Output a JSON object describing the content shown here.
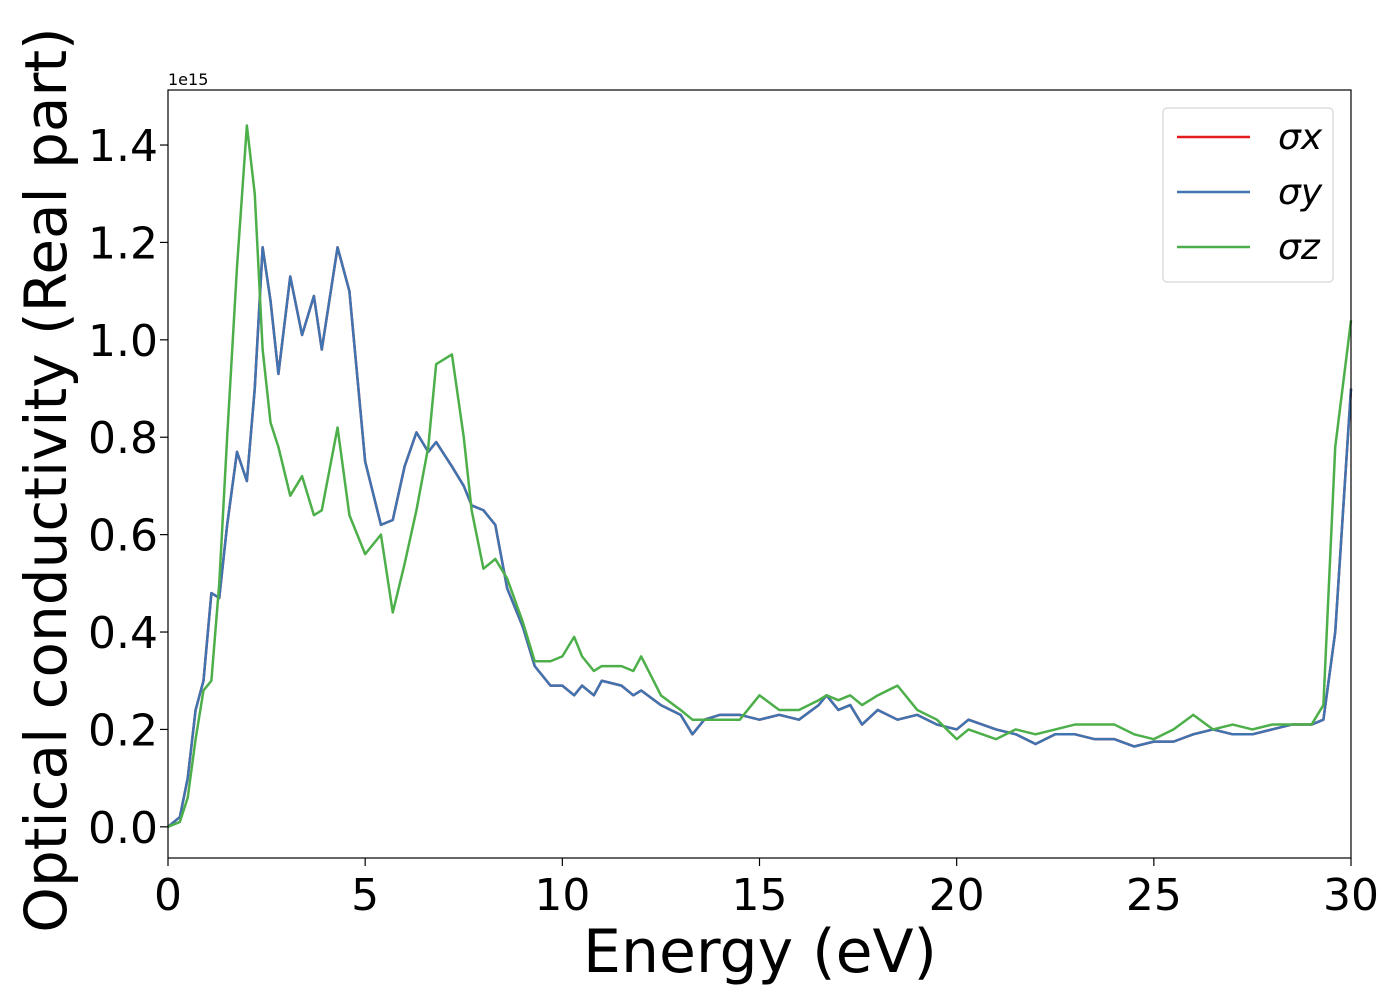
{
  "chart_data": {
    "type": "line",
    "x_label": "Energy (eV)",
    "y_label": "Optical conductivity (Real part)",
    "y_offset_label": "1e15",
    "xlim": [
      0,
      30
    ],
    "ylim": [
      -0.064,
      1.513
    ],
    "xticks": [
      0,
      5,
      10,
      15,
      20,
      25,
      30
    ],
    "yticks": [
      {
        "value": 0,
        "label": "0.0"
      },
      0.2,
      0.4,
      0.6,
      0.8,
      {
        "value": 1,
        "label": "1.0"
      },
      1.2,
      1.4
    ],
    "legend": "upper right",
    "x": [
      0,
      0.3,
      0.5,
      0.7,
      0.9,
      1.1,
      1.3,
      1.5,
      1.75,
      2.0,
      2.2,
      2.4,
      2.6,
      2.8,
      3.1,
      3.4,
      3.7,
      3.9,
      4.3,
      4.6,
      5.0,
      5.4,
      5.7,
      6.0,
      6.3,
      6.6,
      6.8,
      7.2,
      7.5,
      7.7,
      8.0,
      8.3,
      8.6,
      9.0,
      9.3,
      9.7,
      10.0,
      10.3,
      10.5,
      10.8,
      11.0,
      11.5,
      11.8,
      12.0,
      12.5,
      13.0,
      13.3,
      13.6,
      14.0,
      14.5,
      15.0,
      15.5,
      16.0,
      16.5,
      16.7,
      17.0,
      17.3,
      17.6,
      18.0,
      18.5,
      19.0,
      19.5,
      20.0,
      20.3,
      21,
      21.5,
      22,
      22.5,
      23,
      23.5,
      24,
      24.5,
      25,
      25.5,
      26,
      26.5,
      27,
      27.5,
      28,
      28.5,
      29,
      29.3,
      29.6,
      30
    ],
    "series": [
      {
        "name": "σx",
        "color": "#e41a1c",
        "values": [
          0,
          0.02,
          0.1,
          0.24,
          0.3,
          0.48,
          0.47,
          0.62,
          0.77,
          0.71,
          0.9,
          1.19,
          1.08,
          0.93,
          1.13,
          1.01,
          1.09,
          0.98,
          1.19,
          1.1,
          0.75,
          0.62,
          0.63,
          0.74,
          0.81,
          0.77,
          0.79,
          0.74,
          0.7,
          0.66,
          0.65,
          0.62,
          0.49,
          0.41,
          0.33,
          0.29,
          0.29,
          0.27,
          0.29,
          0.27,
          0.3,
          0.29,
          0.27,
          0.28,
          0.25,
          0.23,
          0.19,
          0.22,
          0.23,
          0.23,
          0.22,
          0.23,
          0.22,
          0.25,
          0.27,
          0.24,
          0.25,
          0.21,
          0.24,
          0.22,
          0.23,
          0.21,
          0.2,
          0.22,
          0.2,
          0.19,
          0.17,
          0.19,
          0.19,
          0.18,
          0.18,
          0.165,
          0.175,
          0.175,
          0.19,
          0.2,
          0.19,
          0.19,
          0.2,
          0.21,
          0.21,
          0.22,
          0.4,
          0.9
        ]
      },
      {
        "name": "σy",
        "color": "#3f74b0",
        "values": [
          0,
          0.02,
          0.1,
          0.24,
          0.3,
          0.48,
          0.47,
          0.62,
          0.77,
          0.71,
          0.9,
          1.19,
          1.08,
          0.93,
          1.13,
          1.01,
          1.09,
          0.98,
          1.19,
          1.1,
          0.75,
          0.62,
          0.63,
          0.74,
          0.81,
          0.77,
          0.79,
          0.74,
          0.7,
          0.66,
          0.65,
          0.62,
          0.49,
          0.41,
          0.33,
          0.29,
          0.29,
          0.27,
          0.29,
          0.27,
          0.3,
          0.29,
          0.27,
          0.28,
          0.25,
          0.23,
          0.19,
          0.22,
          0.23,
          0.23,
          0.22,
          0.23,
          0.22,
          0.25,
          0.27,
          0.24,
          0.25,
          0.21,
          0.24,
          0.22,
          0.23,
          0.21,
          0.2,
          0.22,
          0.2,
          0.19,
          0.17,
          0.19,
          0.19,
          0.18,
          0.18,
          0.165,
          0.175,
          0.175,
          0.19,
          0.2,
          0.19,
          0.19,
          0.2,
          0.21,
          0.21,
          0.22,
          0.4,
          0.9
        ]
      },
      {
        "name": "σz",
        "color": "#4daf4a",
        "values": [
          0,
          0.01,
          0.06,
          0.18,
          0.28,
          0.3,
          0.5,
          0.8,
          1.15,
          1.44,
          1.3,
          0.98,
          0.83,
          0.78,
          0.68,
          0.72,
          0.64,
          0.65,
          0.82,
          0.64,
          0.56,
          0.6,
          0.44,
          0.54,
          0.65,
          0.78,
          0.95,
          0.97,
          0.8,
          0.65,
          0.53,
          0.55,
          0.51,
          0.42,
          0.34,
          0.34,
          0.35,
          0.39,
          0.35,
          0.32,
          0.33,
          0.33,
          0.32,
          0.35,
          0.27,
          0.24,
          0.22,
          0.22,
          0.22,
          0.22,
          0.27,
          0.24,
          0.24,
          0.26,
          0.27,
          0.26,
          0.27,
          0.25,
          0.27,
          0.29,
          0.24,
          0.22,
          0.18,
          0.2,
          0.18,
          0.2,
          0.19,
          0.2,
          0.21,
          0.21,
          0.21,
          0.19,
          0.18,
          0.2,
          0.23,
          0.2,
          0.21,
          0.2,
          0.21,
          0.21,
          0.21,
          0.25,
          0.78,
          1.04
        ]
      }
    ]
  }
}
